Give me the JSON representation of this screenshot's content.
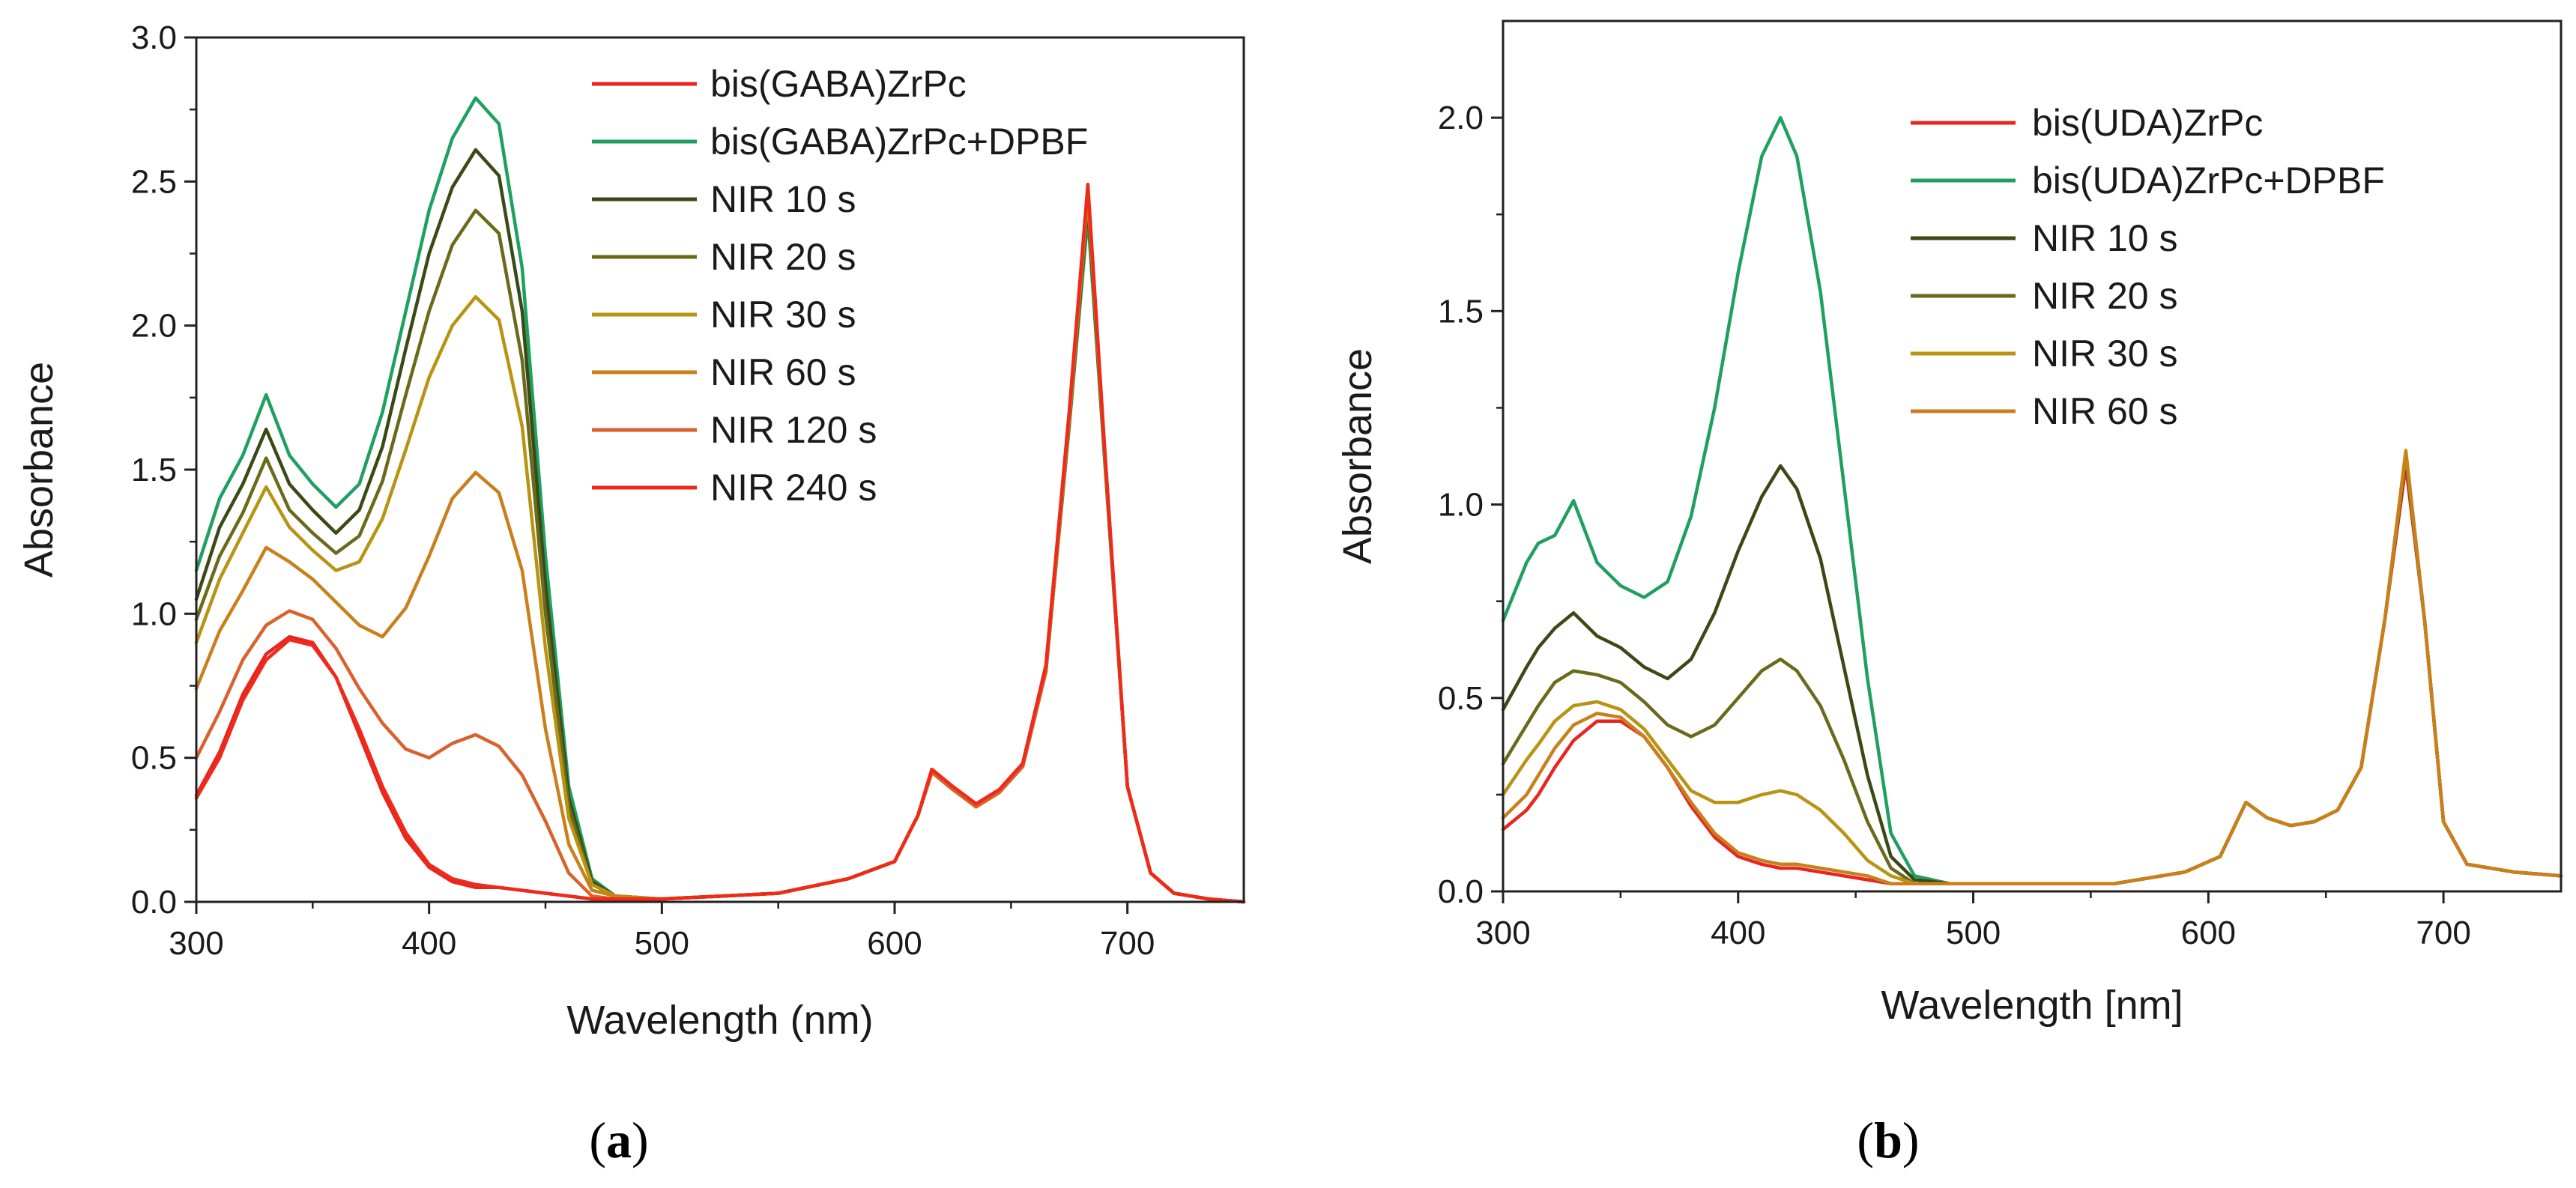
{
  "chart_data": [
    {
      "type": "line",
      "panel_label": "(a)",
      "panel_letter": "a",
      "xlabel": "Wavelength (nm)",
      "ylabel": "Absorbance",
      "xlim": [
        300,
        750
      ],
      "ylim": [
        0,
        3.0
      ],
      "xticks": [
        "300",
        "400",
        "500",
        "600",
        "700"
      ],
      "yticks": [
        "0.0",
        "0.5",
        "1.0",
        "1.5",
        "2.0",
        "2.5",
        "3.0"
      ],
      "legend_position": "top-center",
      "x": [
        300,
        310,
        320,
        330,
        340,
        350,
        360,
        370,
        380,
        390,
        400,
        410,
        420,
        430,
        440,
        450,
        460,
        470,
        480,
        500,
        550,
        580,
        600,
        610,
        616,
        625,
        635,
        645,
        655,
        665,
        675,
        683,
        690,
        700,
        710,
        720,
        735,
        750
      ],
      "series": [
        {
          "name": "bis(GABA)ZrPc",
          "color": "#e8261f",
          "values": [
            0.37,
            0.52,
            0.72,
            0.86,
            0.92,
            0.9,
            0.78,
            0.58,
            0.38,
            0.22,
            0.12,
            0.07,
            0.05,
            0.05,
            0.04,
            0.03,
            0.02,
            0.01,
            0.01,
            0.01,
            0.03,
            0.08,
            0.14,
            0.3,
            0.46,
            0.4,
            0.34,
            0.39,
            0.48,
            0.82,
            1.7,
            2.48,
            1.6,
            0.4,
            0.1,
            0.03,
            0.01,
            0.0
          ]
        },
        {
          "name": "bis(GABA)ZrPc+DPBF",
          "color": "#1fa060",
          "values": [
            1.15,
            1.4,
            1.55,
            1.76,
            1.55,
            1.45,
            1.37,
            1.45,
            1.7,
            2.05,
            2.4,
            2.65,
            2.79,
            2.7,
            2.2,
            1.2,
            0.4,
            0.08,
            0.02,
            0.01,
            0.03,
            0.08,
            0.14,
            0.3,
            0.45,
            0.39,
            0.33,
            0.38,
            0.47,
            0.8,
            1.65,
            2.38,
            1.56,
            0.4,
            0.1,
            0.03,
            0.01,
            0.0
          ]
        },
        {
          "name": "NIR 10 s",
          "color": "#3b4a14",
          "values": [
            1.05,
            1.3,
            1.45,
            1.64,
            1.45,
            1.36,
            1.28,
            1.36,
            1.58,
            1.92,
            2.25,
            2.48,
            2.61,
            2.52,
            2.05,
            1.1,
            0.36,
            0.07,
            0.02,
            0.01,
            0.03,
            0.08,
            0.14,
            0.3,
            0.45,
            0.39,
            0.33,
            0.38,
            0.47,
            0.8,
            1.66,
            2.42,
            1.57,
            0.4,
            0.1,
            0.03,
            0.01,
            0.0
          ]
        },
        {
          "name": "NIR 20 s",
          "color": "#6b6a1a",
          "values": [
            0.98,
            1.2,
            1.35,
            1.54,
            1.36,
            1.28,
            1.21,
            1.27,
            1.46,
            1.76,
            2.05,
            2.28,
            2.4,
            2.32,
            1.88,
            1.0,
            0.33,
            0.06,
            0.02,
            0.01,
            0.03,
            0.08,
            0.14,
            0.3,
            0.45,
            0.39,
            0.33,
            0.38,
            0.47,
            0.8,
            1.67,
            2.44,
            1.58,
            0.4,
            0.1,
            0.03,
            0.01,
            0.0
          ]
        },
        {
          "name": "NIR 30 s",
          "color": "#b89412",
          "values": [
            0.9,
            1.12,
            1.28,
            1.44,
            1.3,
            1.22,
            1.15,
            1.18,
            1.33,
            1.57,
            1.82,
            2.0,
            2.1,
            2.02,
            1.65,
            0.88,
            0.29,
            0.06,
            0.02,
            0.01,
            0.03,
            0.08,
            0.14,
            0.3,
            0.45,
            0.39,
            0.33,
            0.38,
            0.47,
            0.8,
            1.67,
            2.45,
            1.58,
            0.4,
            0.1,
            0.03,
            0.01,
            0.0
          ]
        },
        {
          "name": "NIR 60 s",
          "color": "#c9801c",
          "values": [
            0.74,
            0.94,
            1.08,
            1.23,
            1.18,
            1.12,
            1.04,
            0.96,
            0.92,
            1.02,
            1.2,
            1.4,
            1.49,
            1.42,
            1.15,
            0.6,
            0.2,
            0.04,
            0.02,
            0.01,
            0.03,
            0.08,
            0.14,
            0.3,
            0.45,
            0.39,
            0.33,
            0.38,
            0.47,
            0.8,
            1.68,
            2.46,
            1.59,
            0.4,
            0.1,
            0.03,
            0.01,
            0.0
          ]
        },
        {
          "name": "NIR 120 s",
          "color": "#d9612c",
          "values": [
            0.5,
            0.66,
            0.84,
            0.96,
            1.01,
            0.98,
            0.88,
            0.74,
            0.62,
            0.53,
            0.5,
            0.55,
            0.58,
            0.54,
            0.44,
            0.28,
            0.1,
            0.02,
            0.01,
            0.01,
            0.03,
            0.08,
            0.14,
            0.3,
            0.45,
            0.39,
            0.33,
            0.38,
            0.47,
            0.8,
            1.69,
            2.47,
            1.59,
            0.4,
            0.1,
            0.03,
            0.01,
            0.0
          ]
        },
        {
          "name": "NIR 240 s",
          "color": "#ef2a1a",
          "values": [
            0.36,
            0.5,
            0.7,
            0.84,
            0.91,
            0.89,
            0.78,
            0.6,
            0.4,
            0.24,
            0.13,
            0.08,
            0.06,
            0.05,
            0.04,
            0.03,
            0.02,
            0.01,
            0.01,
            0.01,
            0.03,
            0.08,
            0.14,
            0.3,
            0.46,
            0.4,
            0.34,
            0.39,
            0.48,
            0.82,
            1.7,
            2.49,
            1.6,
            0.4,
            0.1,
            0.03,
            0.01,
            0.0
          ]
        }
      ]
    },
    {
      "type": "line",
      "panel_label": "(b)",
      "panel_letter": "b",
      "xlabel": "Wavelength [nm]",
      "ylabel": "Absorbance",
      "xlim": [
        300,
        750
      ],
      "ylim": [
        0,
        2.25
      ],
      "xticks": [
        "300",
        "400",
        "500",
        "600",
        "700"
      ],
      "yticks": [
        "0.0",
        "0.5",
        "1.0",
        "1.5",
        "2.0"
      ],
      "legend_position": "top-center",
      "x": [
        300,
        310,
        315,
        322,
        330,
        340,
        350,
        360,
        370,
        380,
        390,
        400,
        410,
        418,
        425,
        435,
        445,
        455,
        465,
        475,
        490,
        520,
        560,
        590,
        605,
        616,
        625,
        635,
        645,
        655,
        665,
        675,
        684,
        692,
        700,
        710,
        730,
        750
      ],
      "series": [
        {
          "name": "bis(UDA)ZrPc",
          "color": "#e8261f",
          "values": [
            0.16,
            0.21,
            0.25,
            0.32,
            0.39,
            0.44,
            0.44,
            0.4,
            0.32,
            0.22,
            0.14,
            0.09,
            0.07,
            0.06,
            0.06,
            0.05,
            0.04,
            0.03,
            0.02,
            0.02,
            0.02,
            0.02,
            0.02,
            0.05,
            0.09,
            0.23,
            0.19,
            0.17,
            0.18,
            0.21,
            0.32,
            0.7,
            1.1,
            0.7,
            0.18,
            0.07,
            0.05,
            0.04
          ]
        },
        {
          "name": "bis(UDA)ZrPc+DPBF",
          "color": "#1fa060",
          "values": [
            0.7,
            0.85,
            0.9,
            0.92,
            1.01,
            0.85,
            0.79,
            0.76,
            0.8,
            0.97,
            1.25,
            1.6,
            1.9,
            2.0,
            1.9,
            1.55,
            1.05,
            0.55,
            0.15,
            0.04,
            0.02,
            0.02,
            0.02,
            0.05,
            0.09,
            0.23,
            0.19,
            0.17,
            0.18,
            0.21,
            0.32,
            0.7,
            1.12,
            0.7,
            0.18,
            0.07,
            0.05,
            0.04
          ]
        },
        {
          "name": "NIR 10 s",
          "color": "#3b4a14",
          "values": [
            0.47,
            0.58,
            0.63,
            0.68,
            0.72,
            0.66,
            0.63,
            0.58,
            0.55,
            0.6,
            0.72,
            0.88,
            1.02,
            1.1,
            1.04,
            0.86,
            0.58,
            0.3,
            0.09,
            0.03,
            0.02,
            0.02,
            0.02,
            0.05,
            0.09,
            0.23,
            0.19,
            0.17,
            0.18,
            0.21,
            0.32,
            0.7,
            1.12,
            0.7,
            0.18,
            0.07,
            0.05,
            0.04
          ]
        },
        {
          "name": "NIR 20 s",
          "color": "#6b6a1a",
          "values": [
            0.33,
            0.43,
            0.48,
            0.54,
            0.57,
            0.56,
            0.54,
            0.49,
            0.43,
            0.4,
            0.43,
            0.5,
            0.57,
            0.6,
            0.57,
            0.48,
            0.34,
            0.18,
            0.06,
            0.02,
            0.02,
            0.02,
            0.02,
            0.05,
            0.09,
            0.23,
            0.19,
            0.17,
            0.18,
            0.21,
            0.32,
            0.7,
            1.13,
            0.7,
            0.18,
            0.07,
            0.05,
            0.04
          ]
        },
        {
          "name": "NIR 30 s",
          "color": "#b89412",
          "values": [
            0.25,
            0.34,
            0.38,
            0.44,
            0.48,
            0.49,
            0.47,
            0.42,
            0.34,
            0.26,
            0.23,
            0.23,
            0.25,
            0.26,
            0.25,
            0.21,
            0.15,
            0.08,
            0.04,
            0.02,
            0.02,
            0.02,
            0.02,
            0.05,
            0.09,
            0.23,
            0.19,
            0.17,
            0.18,
            0.21,
            0.32,
            0.7,
            1.14,
            0.7,
            0.18,
            0.07,
            0.05,
            0.04
          ]
        },
        {
          "name": "NIR 60 s",
          "color": "#c9801c",
          "values": [
            0.19,
            0.25,
            0.3,
            0.37,
            0.43,
            0.46,
            0.45,
            0.4,
            0.32,
            0.23,
            0.15,
            0.1,
            0.08,
            0.07,
            0.07,
            0.06,
            0.05,
            0.04,
            0.02,
            0.02,
            0.02,
            0.02,
            0.02,
            0.05,
            0.09,
            0.23,
            0.19,
            0.17,
            0.18,
            0.21,
            0.32,
            0.7,
            1.13,
            0.7,
            0.18,
            0.07,
            0.05,
            0.04
          ]
        }
      ]
    }
  ]
}
